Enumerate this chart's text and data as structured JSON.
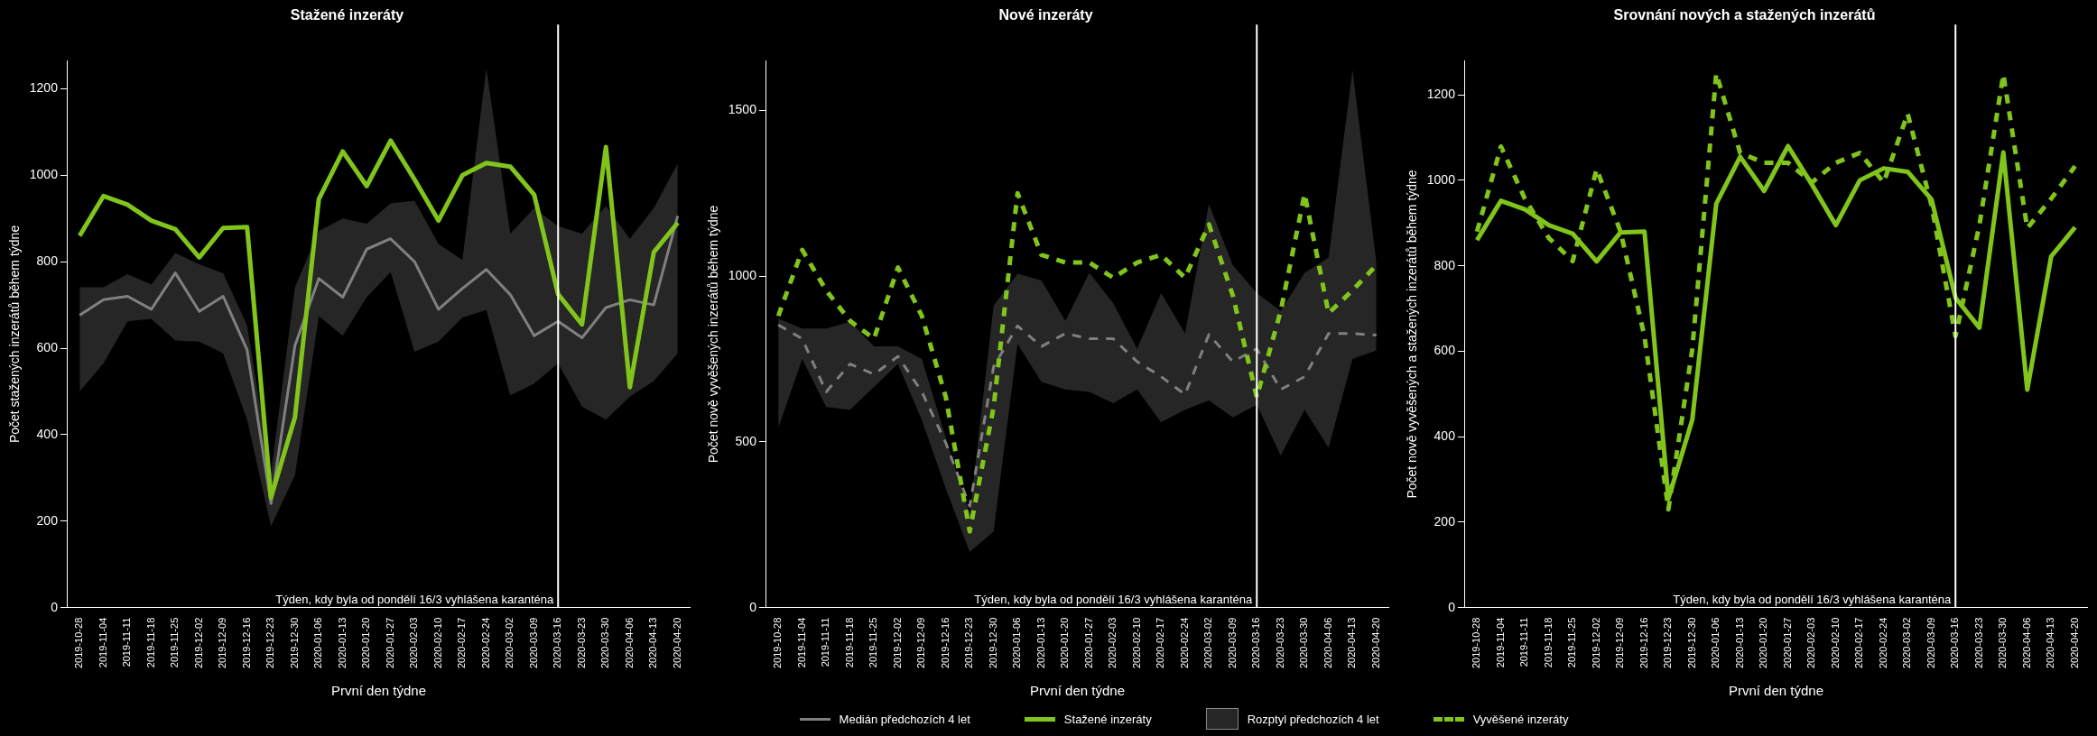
{
  "chart_data": [
    {
      "type": "line",
      "title": "Stažené inzeráty",
      "xlabel": "První den týdne",
      "ylabel": "Počet stažených inzerátů během týdne",
      "categories": [
        "2019-10-28",
        "2019-11-04",
        "2019-11-11",
        "2019-11-18",
        "2019-11-25",
        "2019-12-02",
        "2019-12-09",
        "2019-12-16",
        "2019-12-23",
        "2019-12-30",
        "2020-01-06",
        "2020-01-13",
        "2020-01-20",
        "2020-01-27",
        "2020-02-03",
        "2020-02-10",
        "2020-02-17",
        "2020-02-24",
        "2020-03-02",
        "2020-03-09",
        "2020-03-16",
        "2020-03-23",
        "2020-03-30",
        "2020-04-06",
        "2020-04-13",
        "2020-04-20"
      ],
      "series": [
        {
          "name": "Medián předchozích 4 let",
          "color": "#808080",
          "line_style": "solid",
          "values": [
            676,
            712,
            720,
            690,
            774,
            685,
            720,
            596,
            241,
            606,
            761,
            718,
            829,
            853,
            800,
            690,
            738,
            782,
            724,
            629,
            662,
            624,
            694,
            712,
            700,
            906
          ],
          "lower": [
            500,
            565,
            662,
            668,
            618,
            615,
            588,
            435,
            188,
            306,
            674,
            629,
            718,
            776,
            592,
            615,
            671,
            688,
            491,
            518,
            565,
            465,
            435,
            488,
            524,
            588
          ],
          "upper": [
            741,
            741,
            771,
            747,
            820,
            794,
            773,
            653,
            312,
            741,
            871,
            900,
            888,
            935,
            941,
            841,
            804,
            1247,
            865,
            924,
            882,
            865,
            929,
            853,
            924,
            1027
          ]
        },
        {
          "name": "Stažené inzeráty",
          "color": "#80c41c",
          "line_style": "solid",
          "values": [
            860,
            952,
            932,
            895,
            875,
            810,
            878,
            880,
            255,
            440,
            945,
            1055,
            975,
            1080,
            990,
            895,
            1000,
            1028,
            1020,
            955,
            725,
            655,
            1065,
            510,
            822,
            890
          ]
        }
      ],
      "ylim": [
        0,
        1265
      ],
      "yticks": [
        0,
        200,
        400,
        600,
        800,
        1000,
        1200
      ],
      "grid": false,
      "legend": "bottom",
      "ref_lines": [
        {
          "axis": "x",
          "value": "2020-03-16",
          "label": "Týden, kdy byla od pondělí 16/3 vyhlášena karanténa",
          "color": "#ffffff"
        }
      ],
      "annotations": [
        "Rozptyl předchozích 4 let"
      ]
    },
    {
      "type": "line",
      "title": "Nové inzeráty",
      "xlabel": "První den týdne",
      "ylabel": "Počet nově vyvěšených inzerátů během týdne",
      "categories": [
        "2019-10-28",
        "2019-11-04",
        "2019-11-11",
        "2019-11-18",
        "2019-11-25",
        "2019-12-02",
        "2019-12-09",
        "2019-12-16",
        "2019-12-23",
        "2019-12-30",
        "2020-01-06",
        "2020-01-13",
        "2020-01-20",
        "2020-01-27",
        "2020-02-03",
        "2020-02-10",
        "2020-02-17",
        "2020-02-24",
        "2020-03-02",
        "2020-03-09",
        "2020-03-16",
        "2020-03-23",
        "2020-03-30",
        "2020-04-06",
        "2020-04-13",
        "2020-04-20"
      ],
      "series": [
        {
          "color": "#808080",
          "line_style": "dashed",
          "values": [
            853,
            811,
            651,
            735,
            704,
            758,
            651,
            497,
            306,
            727,
            850,
            788,
            827,
            811,
            811,
            742,
            697,
            643,
            824,
            742,
            781,
            658,
            697,
            827,
            827,
            822
          ],
          "lower": [
            543,
            750,
            605,
            597,
            666,
            735,
            566,
            360,
            168,
            230,
            796,
            681,
            658,
            651,
            617,
            658,
            559,
            597,
            625,
            574,
            612,
            459,
            597,
            482,
            750,
            776
          ],
          "upper": [
            872,
            842,
            842,
            862,
            788,
            788,
            750,
            513,
            283,
            911,
            1007,
            987,
            865,
            1010,
            918,
            781,
            949,
            827,
            1217,
            1033,
            949,
            895,
            1010,
            1056,
            1622,
            1041
          ]
        },
        {
          "name": "Vyvěšené inzeráty",
          "color": "#80c41c",
          "line_style": "dashed",
          "values": [
            880,
            1079,
            957,
            865,
            811,
            1026,
            880,
            635,
            230,
            605,
            1250,
            1064,
            1041,
            1041,
            995,
            1041,
            1064,
            995,
            1156,
            941,
            635,
            895,
            1248,
            888,
            957,
            1033
          ]
        }
      ],
      "ylim": [
        0,
        1650
      ],
      "yticks": [
        0,
        500,
        1000,
        1500
      ],
      "grid": false,
      "legend": "bottom",
      "ref_lines": [
        {
          "axis": "x",
          "value": "2020-03-16",
          "label": "Týden, kdy byla od pondělí 16/3 vyhlášena karanténa",
          "color": "#ffffff"
        }
      ]
    },
    {
      "type": "line",
      "title": "Srovnání nových a stažených inzerátů",
      "xlabel": "První den týdne",
      "ylabel": "Počet nově vyvěšených a stažených inzerátů během týdne",
      "categories": [
        "2019-10-28",
        "2019-11-04",
        "2019-11-11",
        "2019-11-18",
        "2019-11-25",
        "2019-12-02",
        "2019-12-09",
        "2019-12-16",
        "2019-12-23",
        "2019-12-30",
        "2020-01-06",
        "2020-01-13",
        "2020-01-20",
        "2020-01-27",
        "2020-02-03",
        "2020-02-10",
        "2020-02-17",
        "2020-02-24",
        "2020-03-02",
        "2020-03-09",
        "2020-03-16",
        "2020-03-23",
        "2020-03-30",
        "2020-04-06",
        "2020-04-13",
        "2020-04-20"
      ],
      "series": [
        {
          "color": "#80c41c",
          "line_style": "dashed",
          "values": [
            880,
            1079,
            957,
            865,
            811,
            1026,
            880,
            635,
            230,
            605,
            1250,
            1064,
            1041,
            1041,
            995,
            1041,
            1064,
            995,
            1156,
            941,
            635,
            895,
            1248,
            888,
            957,
            1033
          ]
        },
        {
          "color": "#80c41c",
          "line_style": "solid",
          "values": [
            860,
            952,
            932,
            895,
            875,
            810,
            878,
            880,
            255,
            440,
            945,
            1055,
            975,
            1080,
            990,
            895,
            1000,
            1028,
            1020,
            955,
            725,
            655,
            1065,
            510,
            822,
            890
          ]
        }
      ],
      "ylim": [
        0,
        1280
      ],
      "yticks": [
        0,
        200,
        400,
        600,
        800,
        1000,
        1200
      ],
      "grid": false,
      "ref_lines": [
        {
          "axis": "x",
          "value": "2020-03-16",
          "label": "Týden, kdy byla od pondělí 16/3 vyhlášena karanténa",
          "color": "#ffffff"
        }
      ]
    }
  ]
}
